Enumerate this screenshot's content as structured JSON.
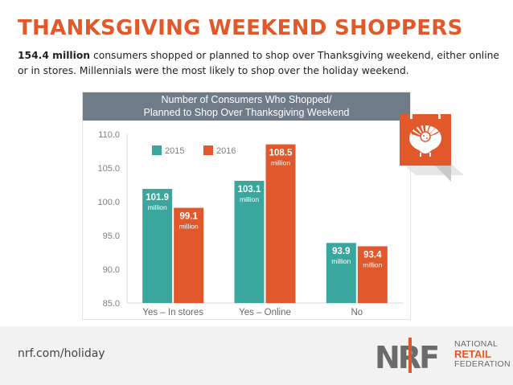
{
  "title": "THANKSGIVING WEEKEND SHOPPERS",
  "subtitle": {
    "lead": "154.4 million",
    "rest": " consumers shopped or planned to shop over Thanksgiving weekend, either online or in stores. Millennials were the most likely to shop over the holiday weekend."
  },
  "footer": {
    "url": "nrf.com/holiday",
    "logo_line1": "NATIONAL",
    "logo_line2": "RETAIL",
    "logo_line3": "FEDERATION",
    "logo_letters": "NRF"
  },
  "icon": "turkey-calendar-icon",
  "colors": {
    "accent": "#e1582a",
    "series_2015": "#3aa79e",
    "series_2016": "#e1582a",
    "header": "#707b88"
  },
  "chart_data": {
    "type": "bar",
    "title_line1": "Number of Consumers Who Shopped/",
    "title_line2": "Planned to Shop Over Thanksgiving Weekend",
    "categories": [
      "Yes – In stores",
      "Yes – Online",
      "No"
    ],
    "series": [
      {
        "name": "2015",
        "color": "#3aa79e",
        "values": [
          101.9,
          103.1,
          93.9
        ],
        "labels": [
          "101.9",
          "103.1",
          "93.9"
        ]
      },
      {
        "name": "2016",
        "color": "#e1582a",
        "values": [
          99.1,
          108.5,
          93.4
        ],
        "labels": [
          "99.1",
          "108.5",
          "93.4"
        ]
      }
    ],
    "unit_label": "million",
    "ylim": [
      85,
      110
    ],
    "yticks": [
      "85.0",
      "90.0",
      "95.0",
      "100.0",
      "105.0",
      "110.0"
    ],
    "legend_position": "top-left",
    "grid": false
  }
}
